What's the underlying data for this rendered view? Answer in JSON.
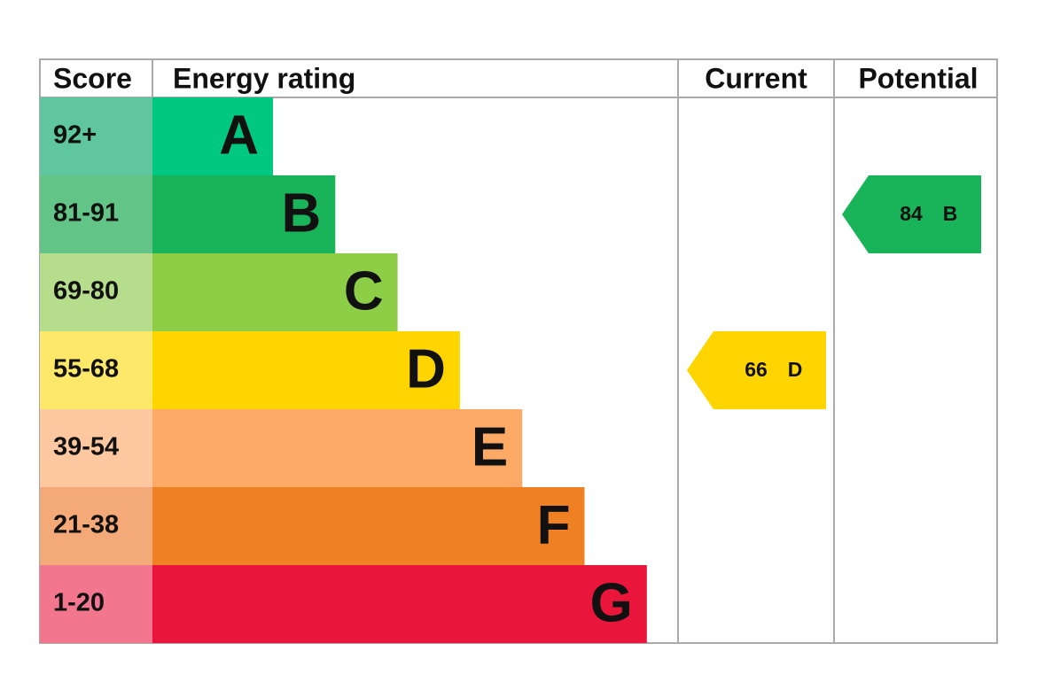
{
  "header": {
    "score": "Score",
    "rating": "Energy rating",
    "current": "Current",
    "potential": "Potential"
  },
  "bands": [
    {
      "score": "92+",
      "letter": "A",
      "color": "#00c781",
      "score_color": "#5fc6a0"
    },
    {
      "score": "81-91",
      "letter": "B",
      "color": "#19b459",
      "score_color": "#63c487"
    },
    {
      "score": "69-80",
      "letter": "C",
      "color": "#8dce46",
      "score_color": "#b5dd8c"
    },
    {
      "score": "55-68",
      "letter": "D",
      "color": "#ffd500",
      "score_color": "#fde86a"
    },
    {
      "score": "39-54",
      "letter": "E",
      "color": "#fcaa65",
      "score_color": "#fdc8a0"
    },
    {
      "score": "21-38",
      "letter": "F",
      "color": "#ef8023",
      "score_color": "#f4a978"
    },
    {
      "score": "1-20",
      "letter": "G",
      "color": "#e9153b",
      "score_color": "#f2768d"
    }
  ],
  "current": {
    "score": "66",
    "rating": "D"
  },
  "potential": {
    "score": "84",
    "rating": "B"
  }
}
